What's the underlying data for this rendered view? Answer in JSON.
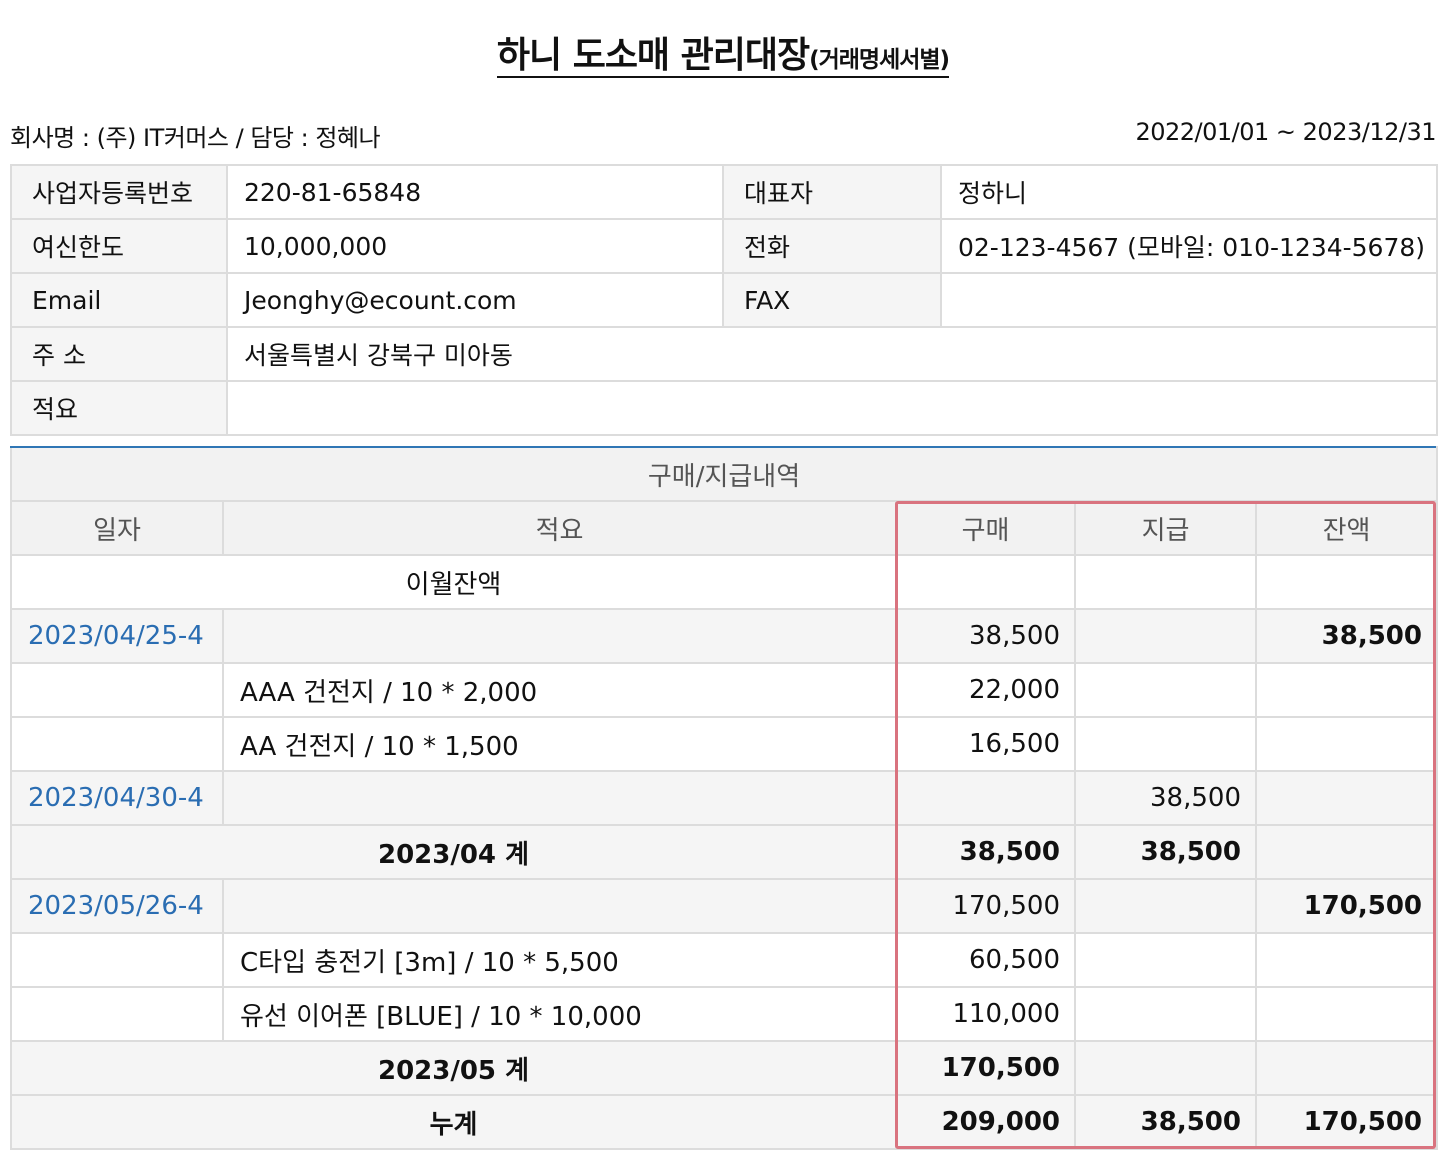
{
  "title": {
    "main": "하니 도소매 관리대장",
    "sub": "(거래명세서별)"
  },
  "meta": {
    "company": "회사명 : (주) IT커머스 / 담당 : 정혜나",
    "period": "2022/01/01 ~ 2023/12/31"
  },
  "info": {
    "biz_no_label": "사업자등록번호",
    "biz_no": "220-81-65848",
    "ceo_label": "대표자",
    "ceo": "정하니",
    "credit_label": "여신한도",
    "credit": "10,000,000",
    "phone_label": "전화",
    "phone": "02-123-4567 (모바일: 010-1234-5678)",
    "email_label": "Email",
    "email": "Jeonghy@ecount.com",
    "fax_label": "FAX",
    "fax": "",
    "address_label": "주 소",
    "address": "서울특별시 강북구 미아동",
    "memo_label": "적요",
    "memo": ""
  },
  "ledger": {
    "section_title": "구매/지급내역",
    "headers": {
      "date": "일자",
      "memo": "적요",
      "purchase": "구매",
      "payment": "지급",
      "balance": "잔액"
    },
    "carry_over": "이월잔액",
    "rows": [
      {
        "date": "2023/04/25-4",
        "memo": "",
        "purchase": "38,500",
        "payment": "",
        "balance": "38,500"
      },
      {
        "date": "",
        "memo": "AAA 건전지 / 10 * 2,000",
        "purchase": "22,000",
        "payment": "",
        "balance": ""
      },
      {
        "date": "",
        "memo": "AA 건전지 / 10 * 1,500",
        "purchase": "16,500",
        "payment": "",
        "balance": ""
      },
      {
        "date": "2023/04/30-4",
        "memo": "",
        "purchase": "",
        "payment": "38,500",
        "balance": ""
      },
      {
        "label": "2023/04 계",
        "purchase": "38,500",
        "payment": "38,500",
        "balance": ""
      },
      {
        "date": "2023/05/26-4",
        "memo": "",
        "purchase": "170,500",
        "payment": "",
        "balance": "170,500"
      },
      {
        "date": "",
        "memo": "C타입 충전기 [3m] / 10 * 5,500",
        "purchase": "60,500",
        "payment": "",
        "balance": ""
      },
      {
        "date": "",
        "memo": "유선 이어폰 [BLUE] / 10 * 10,000",
        "purchase": "110,000",
        "payment": "",
        "balance": ""
      },
      {
        "label": "2023/05 계",
        "purchase": "170,500",
        "payment": "",
        "balance": ""
      },
      {
        "label": "누계",
        "purchase": "209,000",
        "payment": "38,500",
        "balance": "170,500"
      }
    ]
  },
  "colors": {
    "date_link": "#2a6db2",
    "highlight_border": "#d9737f",
    "section_top_border": "#2f76b5"
  }
}
